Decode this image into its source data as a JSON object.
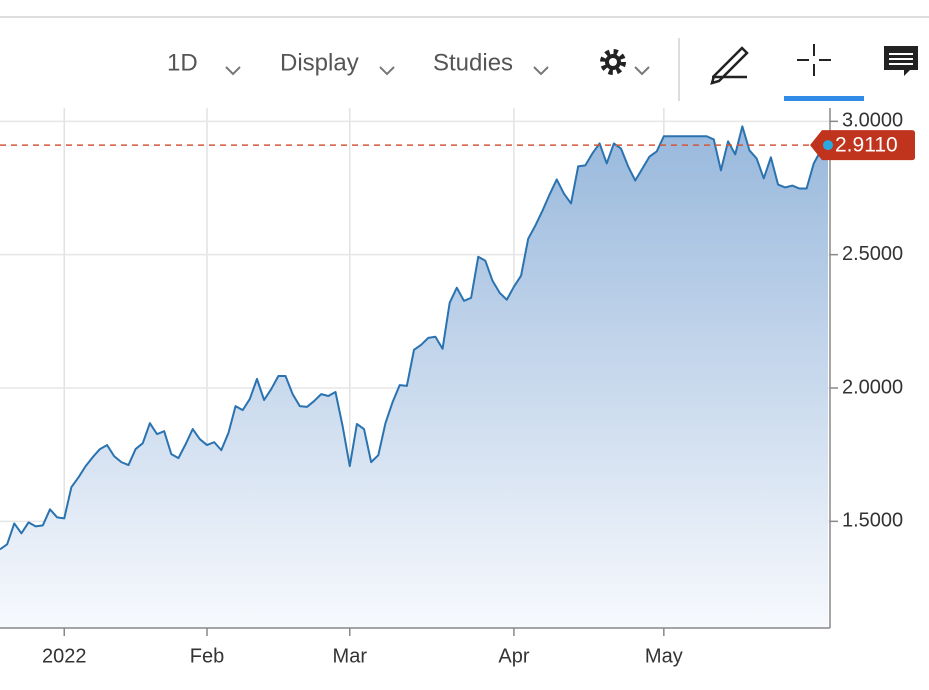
{
  "toolbar": {
    "interval": "1D",
    "display": "Display",
    "studies": "Studies"
  },
  "chart_data": {
    "type": "area",
    "categories": [
      null,
      null,
      null,
      null,
      null,
      null,
      null,
      null,
      null,
      "2022",
      null,
      null,
      null,
      null,
      null,
      null,
      null,
      null,
      null,
      null,
      null,
      null,
      null,
      null,
      null,
      null,
      null,
      null,
      null,
      "Feb",
      null,
      null,
      null,
      null,
      null,
      null,
      null,
      null,
      null,
      null,
      null,
      null,
      null,
      null,
      null,
      null,
      null,
      null,
      null,
      "Mar",
      null,
      null,
      null,
      null,
      null,
      null,
      null,
      null,
      null,
      null,
      null,
      null,
      null,
      null,
      null,
      null,
      null,
      null,
      null,
      null,
      null,
      null,
      "Apr",
      null,
      null,
      null,
      null,
      null,
      null,
      null,
      null,
      null,
      null,
      null,
      null,
      null,
      null,
      null,
      null,
      null,
      null,
      null,
      null,
      "May",
      null,
      null,
      null,
      null,
      null,
      null,
      null,
      null,
      null,
      null,
      null,
      null,
      null,
      null,
      null,
      null,
      null,
      null,
      null,
      null,
      null,
      null,
      null
    ],
    "values": [
      1.395,
      1.414,
      1.492,
      1.455,
      1.496,
      1.481,
      1.485,
      1.545,
      1.515,
      1.511,
      1.628,
      1.665,
      1.707,
      1.741,
      1.771,
      1.786,
      1.744,
      1.722,
      1.711,
      1.771,
      1.793,
      1.868,
      1.827,
      1.838,
      1.752,
      1.737,
      1.789,
      1.846,
      1.808,
      1.786,
      1.797,
      1.767,
      1.831,
      1.932,
      1.917,
      1.959,
      2.034,
      1.955,
      1.996,
      2.045,
      2.045,
      1.977,
      1.932,
      1.929,
      1.951,
      1.977,
      1.97,
      1.985,
      1.857,
      1.707,
      1.865,
      1.846,
      1.722,
      1.748,
      1.868,
      1.947,
      2.011,
      2.008,
      2.143,
      2.162,
      2.188,
      2.192,
      2.147,
      2.32,
      2.376,
      2.327,
      2.338,
      2.492,
      2.477,
      2.402,
      2.357,
      2.331,
      2.38,
      2.421,
      2.56,
      2.609,
      2.665,
      2.726,
      2.782,
      2.729,
      2.692,
      2.831,
      2.835,
      2.88,
      2.917,
      2.842,
      2.917,
      2.898,
      2.831,
      2.778,
      2.823,
      2.868,
      2.887,
      2.944,
      2.944,
      2.944,
      2.944,
      2.944,
      2.944,
      2.944,
      2.932,
      2.816,
      2.925,
      2.876,
      2.981,
      2.891,
      2.861,
      2.786,
      2.865,
      2.763,
      2.752,
      2.759,
      2.748,
      2.748,
      2.842,
      2.891,
      2.911
    ],
    "color": "#2a73b0",
    "ylim": [
      1.1,
      3.05
    ],
    "yticks": [
      {
        "value": 1.5,
        "label": "1.5000"
      },
      {
        "value": 2.0,
        "label": "2.0000"
      },
      {
        "value": 2.5,
        "label": "2.5000"
      },
      {
        "value": 3.0,
        "label": "3.0000"
      }
    ],
    "grid": true,
    "reference_line": {
      "value": 2.911,
      "label": "2.9110",
      "color": "#d4573a"
    }
  }
}
